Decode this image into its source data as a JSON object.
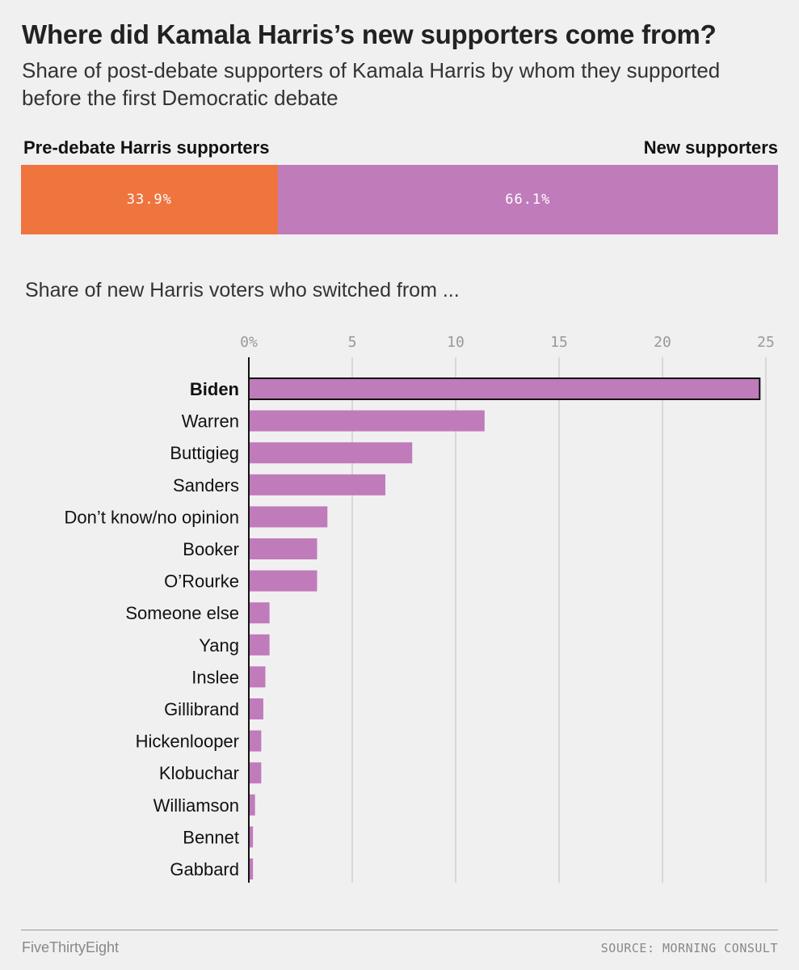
{
  "title": "Where did Kamala Harris’s new supporters come from?",
  "subtitle": "Share of post-debate supporters of Kamala Harris by whom they supported before the first Democratic debate",
  "stack": {
    "left_label": "Pre-debate Harris supporters",
    "right_label": "New supporters",
    "segments": [
      {
        "label": "33.9%",
        "value": 33.9,
        "color": "#ef743d"
      },
      {
        "label": "66.1%",
        "value": 66.1,
        "color": "#c07bbb"
      }
    ]
  },
  "section_label": "Share of new Harris voters who switched from ...",
  "chart_data": {
    "type": "bar",
    "orientation": "horizontal",
    "title": "Share of new Harris voters who switched from ...",
    "categories": [
      "Biden",
      "Warren",
      "Buttigieg",
      "Sanders",
      "Don’t know/no opinion",
      "Booker",
      "O’Rourke",
      "Someone else",
      "Yang",
      "Inslee",
      "Gillibrand",
      "Hickenlooper",
      "Klobuchar",
      "Williamson",
      "Bennet",
      "Gabbard"
    ],
    "values": [
      24.7,
      11.4,
      7.9,
      6.6,
      3.8,
      3.3,
      3.3,
      1.0,
      1.0,
      0.8,
      0.7,
      0.6,
      0.6,
      0.3,
      0.2,
      0.2
    ],
    "highlight": "Biden",
    "xlim": [
      0,
      25
    ],
    "ticks": [
      0,
      5,
      10,
      15,
      20,
      25
    ],
    "tick_labels": [
      "0%",
      "5",
      "10",
      "15",
      "20",
      "25"
    ],
    "bar_color": "#c07bbb",
    "grid": true
  },
  "footer": {
    "brand": "FiveThirtyEight",
    "source": "SOURCE: MORNING CONSULT"
  }
}
